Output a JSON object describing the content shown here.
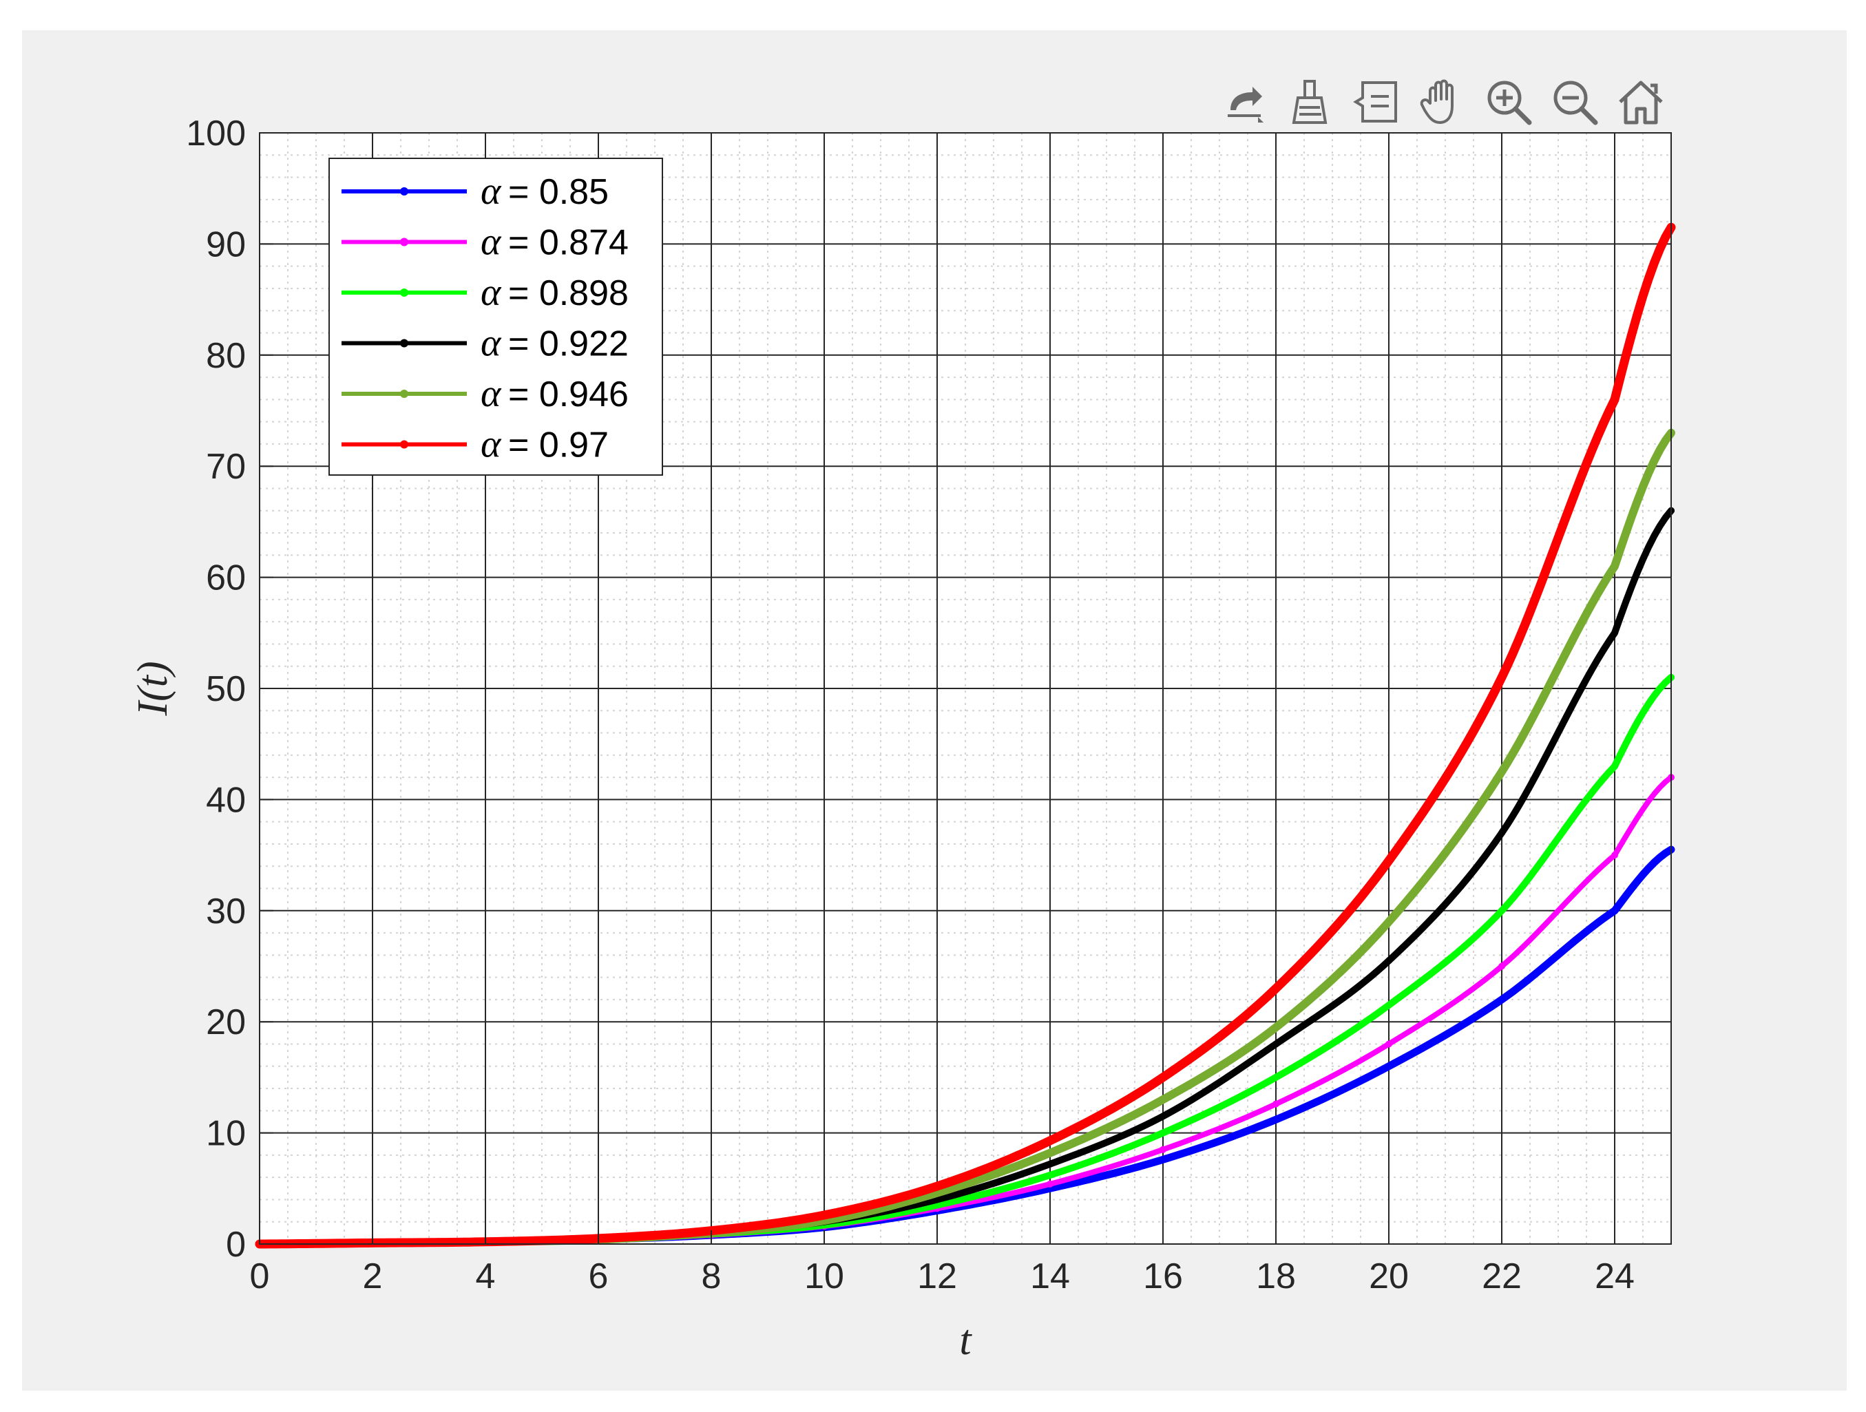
{
  "toolbar": {
    "buttons": [
      {
        "name": "export-icon"
      },
      {
        "name": "brush-icon"
      },
      {
        "name": "data-tips-icon"
      },
      {
        "name": "pan-icon"
      },
      {
        "name": "zoom-in-icon"
      },
      {
        "name": "zoom-out-icon"
      },
      {
        "name": "home-icon"
      }
    ]
  },
  "chart_data": {
    "type": "line",
    "title": "",
    "xlabel": "t",
    "ylabel": "I(t)",
    "xlim": [
      0,
      25
    ],
    "ylim": [
      0,
      100
    ],
    "xticks": [
      0,
      2,
      4,
      6,
      8,
      10,
      12,
      14,
      16,
      18,
      20,
      22,
      24
    ],
    "yticks": [
      0,
      10,
      20,
      30,
      40,
      50,
      60,
      70,
      80,
      90,
      100
    ],
    "grid": true,
    "minor_grid": true,
    "legend_position": "top-left",
    "x": [
      0,
      2,
      4,
      6,
      8,
      10,
      12,
      14,
      16,
      18,
      20,
      22,
      24,
      25
    ],
    "series": [
      {
        "name": "α = 0.85",
        "alpha_symbol": "α",
        "alpha_value": "= 0.85",
        "color": "#0000ff",
        "values": [
          0,
          0.1,
          0.2,
          0.4,
          0.8,
          1.5,
          3.0,
          5.0,
          7.6,
          11.2,
          16.0,
          22.0,
          30.0,
          35.5
        ]
      },
      {
        "name": "α = 0.874",
        "alpha_symbol": "α",
        "alpha_value": "= 0.874",
        "color": "#ff00ff",
        "values": [
          0,
          0.1,
          0.2,
          0.4,
          0.8,
          1.6,
          3.2,
          5.4,
          8.5,
          12.6,
          18.0,
          25.0,
          35.0,
          42.0
        ]
      },
      {
        "name": "α = 0.898",
        "alpha_symbol": "α",
        "alpha_value": "= 0.898",
        "color": "#00ff00",
        "values": [
          0,
          0.1,
          0.2,
          0.4,
          0.9,
          1.7,
          3.5,
          6.2,
          10.0,
          15.0,
          21.5,
          30.0,
          43.0,
          51.0
        ]
      },
      {
        "name": "α = 0.922",
        "alpha_symbol": "α",
        "alpha_value": "= 0.922",
        "color": "#000000",
        "values": [
          0,
          0.1,
          0.2,
          0.4,
          1.0,
          2.0,
          4.0,
          7.2,
          11.5,
          18.0,
          25.5,
          37.0,
          55.0,
          66.0
        ]
      },
      {
        "name": "α = 0.946",
        "alpha_symbol": "α",
        "alpha_value": "= 0.946",
        "color": "#77ac30",
        "values": [
          0,
          0.1,
          0.2,
          0.4,
          1.0,
          2.1,
          4.6,
          8.2,
          13.0,
          19.5,
          29.0,
          42.5,
          61.0,
          73.0
        ]
      },
      {
        "name": "α = 0.97",
        "alpha_symbol": "α",
        "alpha_value": "= 0.97",
        "color": "#ff0000",
        "values": [
          0,
          0.1,
          0.2,
          0.5,
          1.2,
          2.6,
          5.2,
          9.3,
          15.0,
          23.0,
          34.5,
          51.0,
          76.0,
          91.5
        ]
      }
    ]
  }
}
